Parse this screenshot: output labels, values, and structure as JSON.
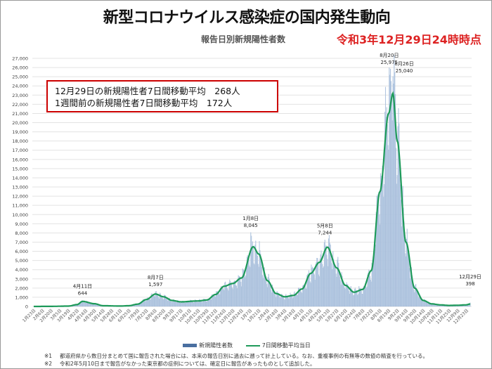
{
  "header": {
    "title": "新型コロナウイルス感染症の国内発生動向",
    "subtitle": "報告日別新規陽性者数",
    "as_of": "令和3年12月29日24時時点"
  },
  "info_box": {
    "line1": "12月29日の新規陽性者7日間移動平均　268人",
    "line2": "1週間前の新規陽性者7日間移動平均　172人"
  },
  "legend": {
    "bars": "新規陽性者数",
    "line": "7日間移動平均当日"
  },
  "footnotes": [
    {
      "mark": "※1",
      "text": "都道府県から数日分まとめて国に報告された場合には、本来の報告日別に過去に遡って計上している。なお、重複事例の有無等の数値の精査を行っている。"
    },
    {
      "mark": "※2",
      "text": "令和2年5月10日まで報告がなかった東京都の症例については、確定日に報告があったものとして追加した。"
    }
  ],
  "colors": {
    "bar": "#b8cce4",
    "bar_edge": "#8fa9cc",
    "line": "#1e9a5a",
    "title": "#111111",
    "as_of": "#dd2222",
    "box": "#cc0000"
  },
  "chart_data": {
    "type": "bar",
    "title": "報告日別新規陽性者数",
    "xlabel": "",
    "ylabel": "",
    "ylim": [
      0,
      27000
    ],
    "yticks": [
      0,
      1000,
      2000,
      3000,
      4000,
      5000,
      6000,
      7000,
      8000,
      9000,
      10000,
      11000,
      12000,
      13000,
      14000,
      15000,
      16000,
      17000,
      18000,
      19000,
      20000,
      21000,
      22000,
      23000,
      24000,
      25000,
      26000,
      27000
    ],
    "ytick_labels": [
      "0",
      "1,000",
      "2,000",
      "3,000",
      "4,000",
      "5,000",
      "6,000",
      "7,000",
      "8,000",
      "9,000",
      "10,000",
      "11,000",
      "12,000",
      "13,000",
      "14,000",
      "15,000",
      "16,000",
      "17,000",
      "18,000",
      "19,000",
      "20,000",
      "21,000",
      "22,000",
      "23,000",
      "24,000",
      "25,000",
      "26,000",
      "27,000"
    ],
    "grid": true,
    "legend_position": "bottom",
    "x_range": [
      "2020-01-23",
      "2021-12-29"
    ],
    "xtick_dates": [
      "2020-01-23",
      "2020-02-06",
      "2020-02-20",
      "2020-03-05",
      "2020-03-19",
      "2020-04-02",
      "2020-04-16",
      "2020-04-30",
      "2020-05-14",
      "2020-05-28",
      "2020-06-11",
      "2020-06-25",
      "2020-07-09",
      "2020-07-23",
      "2020-08-06",
      "2020-08-20",
      "2020-09-03",
      "2020-09-17",
      "2020-10-01",
      "2020-10-15",
      "2020-10-29",
      "2020-11-12",
      "2020-11-26",
      "2020-12-10",
      "2020-12-24",
      "2021-01-07",
      "2021-01-21",
      "2021-02-04",
      "2021-02-18",
      "2021-03-04",
      "2021-03-18",
      "2021-04-01",
      "2021-04-15",
      "2021-04-29",
      "2021-05-13",
      "2021-05-27",
      "2021-06-10",
      "2021-06-24",
      "2021-07-08",
      "2021-07-22",
      "2021-08-05",
      "2021-08-19",
      "2021-09-02",
      "2021-09-16",
      "2021-09-30",
      "2021-10-14",
      "2021-10-28",
      "2021-11-11",
      "2021-11-25",
      "2021-12-09",
      "2021-12-23"
    ],
    "xtick_labels": [
      "1月23日",
      "2月6日",
      "2月20日",
      "3月5日",
      "3月19日",
      "4月2日",
      "4月16日",
      "4月30日",
      "5月14日",
      "5月28日",
      "6月11日",
      "6月25日",
      "7月9日",
      "7月23日",
      "8月6日",
      "8月20日",
      "9月3日",
      "9月17日",
      "10月1日",
      "10月15日",
      "10月29日",
      "11月12日",
      "11月26日",
      "12月10日",
      "12月24日",
      "1月7日",
      "1月21日",
      "2月4日",
      "2月18日",
      "3月4日",
      "3月18日",
      "4月1日",
      "4月15日",
      "4月29日",
      "5月13日",
      "5月27日",
      "6月10日",
      "6月24日",
      "7月8日",
      "7月22日",
      "8月5日",
      "8月19日",
      "9月2日",
      "9月16日",
      "9月30日",
      "10月14日",
      "10月28日",
      "11月11日",
      "11月25日",
      "12月9日",
      "12月23日"
    ],
    "series": [
      {
        "name": "7日間移動平均当日",
        "type": "line",
        "x": [
          "2020-01-23",
          "2020-02-20",
          "2020-03-19",
          "2020-04-02",
          "2020-04-11",
          "2020-04-30",
          "2020-05-14",
          "2020-06-11",
          "2020-06-25",
          "2020-07-09",
          "2020-07-23",
          "2020-08-07",
          "2020-08-20",
          "2020-09-03",
          "2020-09-17",
          "2020-10-15",
          "2020-10-29",
          "2020-11-12",
          "2020-11-26",
          "2020-12-10",
          "2020-12-24",
          "2021-01-12",
          "2021-01-21",
          "2021-02-04",
          "2021-02-18",
          "2021-03-04",
          "2021-03-18",
          "2021-04-01",
          "2021-04-15",
          "2021-04-29",
          "2021-05-12",
          "2021-05-27",
          "2021-06-10",
          "2021-06-24",
          "2021-07-08",
          "2021-07-22",
          "2021-08-05",
          "2021-08-19",
          "2021-08-26",
          "2021-09-02",
          "2021-09-16",
          "2021-09-30",
          "2021-10-14",
          "2021-10-28",
          "2021-11-11",
          "2021-11-25",
          "2021-12-09",
          "2021-12-22",
          "2021-12-29"
        ],
        "values": [
          0,
          10,
          40,
          200,
          550,
          300,
          80,
          45,
          80,
          250,
          750,
          1350,
          1050,
          650,
          500,
          600,
          700,
          1300,
          2200,
          2500,
          3100,
          6500,
          5700,
          2800,
          1400,
          1050,
          1200,
          1900,
          3600,
          4800,
          6450,
          4200,
          2300,
          1550,
          1850,
          3900,
          12500,
          21000,
          23200,
          18000,
          7000,
          2000,
          650,
          280,
          170,
          110,
          130,
          172,
          268
        ]
      },
      {
        "name": "新規陽性者数",
        "type": "bar",
        "note": "daily bars around the moving average"
      }
    ],
    "annotations": [
      {
        "date": "2020-04-11",
        "label": "4月11日",
        "value_text": "644",
        "value": 644
      },
      {
        "date": "2020-08-07",
        "label": "8月7日",
        "value_text": "1,597",
        "value": 1597
      },
      {
        "date": "2021-01-08",
        "label": "1月8日",
        "value_text": "8,045",
        "value": 8045
      },
      {
        "date": "2021-05-08",
        "label": "5月8日",
        "value_text": "7,244",
        "value": 7244
      },
      {
        "date": "2021-08-20",
        "label": "8月20日",
        "value_text": "25,975",
        "value": 25975
      },
      {
        "date": "2021-08-26",
        "label": "8月26日",
        "value_text": "25,040",
        "value": 25040
      },
      {
        "date": "2021-12-29",
        "label": "12月29日",
        "value_text": "398",
        "value": 398
      }
    ]
  }
}
